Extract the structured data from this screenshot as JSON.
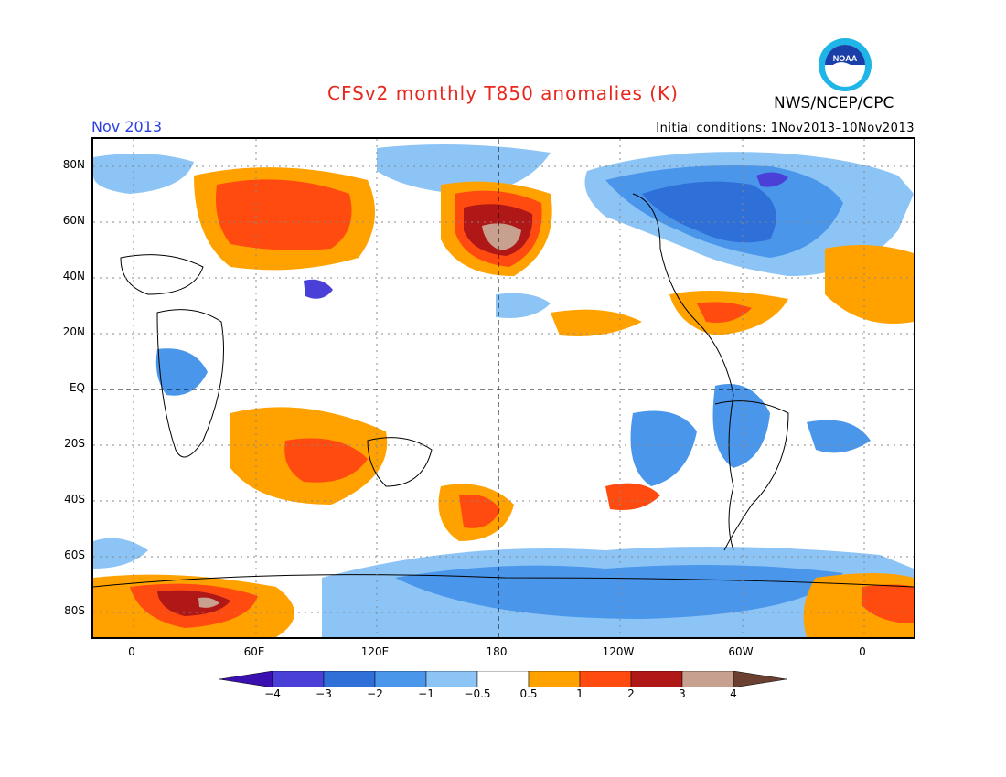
{
  "title": "CFSv2 monthly T850 anomalies (K)",
  "valid_month": "Nov 2013",
  "initial_conditions": "Initial conditions: 1Nov2013–10Nov2013",
  "agency": "NWS/NCEP/CPC",
  "logo_text": "NOAA",
  "lat_labels": [
    "80N",
    "60N",
    "40N",
    "20N",
    "EQ",
    "20S",
    "40S",
    "60S",
    "80S"
  ],
  "lon_labels": [
    "0",
    "60E",
    "120E",
    "180",
    "120W",
    "60W",
    "0"
  ],
  "colorbar": {
    "levels": [
      "−4",
      "−3",
      "−2",
      "−1",
      "−0.5",
      "0.5",
      "1",
      "2",
      "3",
      "4"
    ],
    "colors": [
      "#3a10b0",
      "#4a3fd6",
      "#2f6fd8",
      "#4a96ea",
      "#8cc4f5",
      "#ffffff",
      "#ffa200",
      "#ff4a10",
      "#b01818",
      "#c8a090",
      "#6b4030"
    ]
  },
  "colors": {
    "cold_1": "#8cc4f5",
    "cold_2": "#4a96ea",
    "cold_3": "#2f6fd8",
    "cold_4": "#4a3fd6",
    "warm_1": "#ffa200",
    "warm_2": "#ff4a10",
    "warm_3": "#b01818",
    "warm_4": "#c8a090"
  }
}
